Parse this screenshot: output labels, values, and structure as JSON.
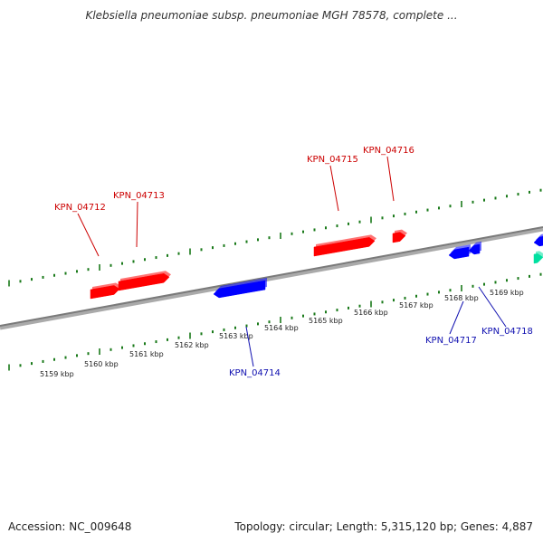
{
  "title": "Klebsiella pneumoniae subsp. pneumoniae MGH 78578, complete ...",
  "footer": {
    "accession": "Accession: NC_009648",
    "summary": "Topology: circular; Length: 5,315,120 bp; Genes: 4,887"
  },
  "colors": {
    "forward_gene": "#ff0000",
    "reverse_gene": "#0000ff",
    "other_feature": "#00e0a0",
    "ruler_ticks": "#1a7a1a",
    "backbone": "#888888",
    "forward_label": "#cc0000",
    "reverse_label": "#1010b0"
  },
  "scale": {
    "kbp_labels": [
      "5159 kbp",
      "5160 kbp",
      "5161 kbp",
      "5162 kbp",
      "5163 kbp",
      "5164 kbp",
      "5165 kbp",
      "5166 kbp",
      "5167 kbp",
      "5168 kbp",
      "5169 kbp"
    ]
  },
  "genes": {
    "forward": [
      {
        "label": "KPN_04712"
      },
      {
        "label": "KPN_04713"
      },
      {
        "label": "KPN_04715"
      },
      {
        "label": "KPN_04716"
      }
    ],
    "reverse": [
      {
        "label": "KPN_04714"
      },
      {
        "label": "KPN_04717"
      },
      {
        "label": "KPN_04718"
      }
    ]
  }
}
